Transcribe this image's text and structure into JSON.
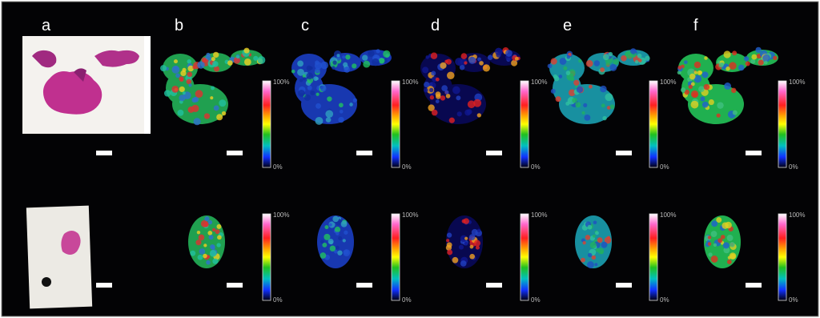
{
  "panels": [
    {
      "label": "a"
    },
    {
      "label": "b",
      "colorbars": [
        {
          "max": "100%",
          "min": "0%"
        },
        {
          "max": "100%",
          "min": "0%"
        }
      ]
    },
    {
      "label": "c",
      "colorbars": [
        {
          "max": "100%",
          "min": "0%"
        },
        {
          "max": "100%",
          "min": "0%"
        }
      ]
    },
    {
      "label": "d",
      "colorbars": [
        {
          "max": "100%",
          "min": "0%"
        },
        {
          "max": "100%",
          "min": "0%"
        }
      ]
    },
    {
      "label": "e",
      "colorbars": [
        {
          "max": "100%",
          "min": "0%"
        },
        {
          "max": "100%",
          "min": "0%"
        }
      ]
    },
    {
      "label": "f",
      "colorbars": [
        {
          "max": "100%",
          "min": "0%"
        },
        {
          "max": "100%",
          "min": "0%"
        }
      ]
    }
  ]
}
